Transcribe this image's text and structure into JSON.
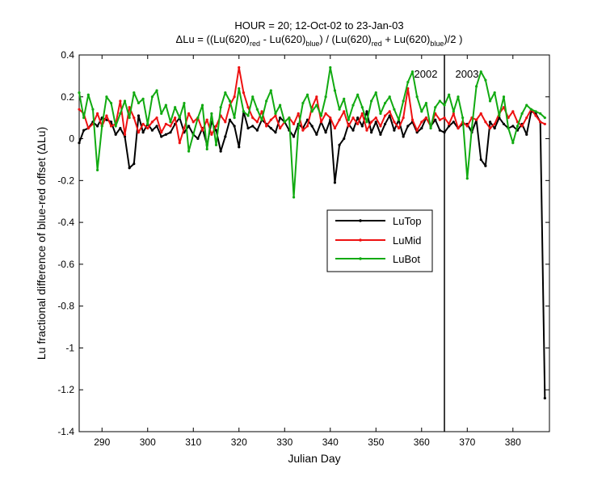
{
  "chart_data": {
    "type": "line",
    "title_line1": "HOUR = 20; 12-Oct-02 to 23-Jan-03",
    "title_line2": {
      "prefix": "ΔLu = ((Lu(620)",
      "sub1": "red",
      "mid1": " - Lu(620)",
      "sub2": "blue",
      "mid2": ") / (Lu(620)",
      "sub3": "red",
      "mid3": " + Lu(620)",
      "sub4": "blue",
      "suffix": ")/2  )"
    },
    "xlabel": "Julian Day",
    "ylabel": "Lu fractional difference of blue-red offset (ΔLu)",
    "xlim": [
      285,
      388
    ],
    "ylim": [
      -1.4,
      0.4
    ],
    "xticks": [
      "290",
      "300",
      "310",
      "320",
      "330",
      "340",
      "350",
      "360",
      "370",
      "380"
    ],
    "yticks": [
      "0.4",
      "0.2",
      "0",
      "-0.2",
      "-0.4",
      "-0.6",
      "-0.8",
      "-1",
      "-1.2",
      "-1.4"
    ],
    "grid": false,
    "legend_position": "center-right",
    "annotations": {
      "year_left": "2002",
      "year_right": "2003",
      "divider_x": 365
    },
    "series": [
      {
        "name": "LuTop",
        "color": "#000000",
        "x": [
          285,
          286,
          287,
          288,
          289,
          290,
          291,
          292,
          293,
          294,
          295,
          296,
          297,
          298,
          299,
          300,
          301,
          302,
          303,
          304,
          305,
          306,
          307,
          308,
          309,
          310,
          311,
          312,
          313,
          314,
          315,
          316,
          317,
          318,
          319,
          320,
          321,
          322,
          323,
          324,
          325,
          326,
          327,
          328,
          329,
          330,
          331,
          332,
          333,
          334,
          335,
          336,
          337,
          338,
          339,
          340,
          341,
          342,
          343,
          344,
          345,
          346,
          347,
          348,
          349,
          350,
          351,
          352,
          353,
          354,
          355,
          356,
          357,
          358,
          359,
          360,
          361,
          362,
          363,
          364,
          365,
          366,
          367,
          368,
          369,
          370,
          371,
          372,
          373,
          374,
          375,
          376,
          377,
          378,
          379,
          380,
          381,
          382,
          383,
          384,
          385,
          386,
          387
        ],
        "y": [
          -0.02,
          0.04,
          0.05,
          0.08,
          0.06,
          0.1,
          0.09,
          0.08,
          0.02,
          0.05,
          0.01,
          -0.14,
          -0.12,
          0.11,
          0.03,
          0.07,
          0.04,
          0.06,
          0.01,
          0.02,
          0.03,
          0.07,
          0.1,
          0.03,
          0.06,
          0.02,
          0.0,
          0.05,
          -0.03,
          0.08,
          0.04,
          -0.06,
          0.01,
          0.09,
          0.06,
          -0.04,
          0.13,
          0.05,
          0.06,
          0.04,
          0.09,
          0.07,
          0.05,
          0.03,
          0.1,
          0.08,
          0.04,
          0.01,
          0.07,
          0.05,
          0.09,
          0.06,
          0.02,
          0.08,
          0.03,
          0.09,
          -0.21,
          -0.03,
          0.0,
          0.07,
          0.04,
          0.1,
          0.06,
          0.13,
          0.03,
          0.08,
          0.02,
          0.07,
          0.11,
          0.04,
          0.09,
          0.01,
          0.06,
          0.08,
          0.03,
          0.05,
          0.1,
          0.06,
          0.09,
          0.04,
          0.03,
          0.06,
          0.08,
          0.05,
          0.07,
          0.07,
          0.03,
          0.09,
          -0.1,
          -0.13,
          0.08,
          0.05,
          0.1,
          0.07,
          0.05,
          0.06,
          0.04,
          0.07,
          0.02,
          0.13,
          0.12,
          0.08,
          -1.24
        ]
      },
      {
        "name": "LuMid",
        "color": "#ee1111",
        "x": [
          285,
          286,
          287,
          288,
          289,
          290,
          291,
          292,
          293,
          294,
          295,
          296,
          297,
          298,
          299,
          300,
          301,
          302,
          303,
          304,
          305,
          306,
          307,
          308,
          309,
          310,
          311,
          312,
          313,
          314,
          315,
          316,
          317,
          318,
          319,
          320,
          321,
          322,
          323,
          324,
          325,
          326,
          327,
          328,
          329,
          330,
          331,
          332,
          333,
          334,
          335,
          336,
          337,
          338,
          339,
          340,
          341,
          342,
          343,
          344,
          345,
          346,
          347,
          348,
          349,
          350,
          351,
          352,
          353,
          354,
          355,
          356,
          357,
          358,
          359,
          360,
          361,
          362,
          363,
          364,
          365,
          366,
          367,
          368,
          369,
          370,
          371,
          372,
          373,
          374,
          375,
          376,
          377,
          378,
          379,
          380,
          381,
          382,
          383,
          384,
          385,
          386,
          387
        ],
        "y": [
          0.14,
          0.12,
          0.05,
          0.07,
          0.12,
          0.06,
          0.11,
          0.06,
          0.07,
          0.18,
          0.02,
          0.15,
          0.1,
          0.03,
          0.07,
          0.05,
          0.08,
          0.1,
          0.03,
          0.07,
          0.06,
          0.1,
          -0.02,
          0.05,
          0.12,
          0.08,
          0.1,
          0.04,
          0.09,
          0.02,
          0.06,
          0.11,
          0.08,
          0.16,
          0.2,
          0.34,
          0.22,
          0.15,
          0.1,
          0.08,
          0.13,
          0.06,
          0.09,
          0.11,
          0.05,
          0.08,
          0.1,
          0.07,
          0.12,
          0.04,
          0.06,
          0.15,
          0.2,
          0.08,
          0.12,
          0.1,
          0.05,
          0.09,
          0.13,
          0.06,
          0.1,
          0.07,
          0.12,
          0.04,
          0.08,
          0.1,
          0.06,
          0.11,
          0.13,
          0.08,
          0.05,
          0.1,
          0.24,
          0.09,
          0.04,
          0.08,
          0.1,
          0.06,
          0.12,
          0.09,
          0.1,
          0.07,
          0.12,
          0.05,
          0.08,
          0.06,
          0.1,
          0.09,
          0.12,
          0.08,
          0.05,
          0.07,
          0.12,
          0.15,
          0.1,
          0.13,
          0.08,
          0.06,
          0.1,
          0.14,
          0.11,
          0.08,
          0.07
        ]
      },
      {
        "name": "LuBot",
        "color": "#11aa11",
        "x": [
          285,
          286,
          287,
          288,
          289,
          290,
          291,
          292,
          293,
          294,
          295,
          296,
          297,
          298,
          299,
          300,
          301,
          302,
          303,
          304,
          305,
          306,
          307,
          308,
          309,
          310,
          311,
          312,
          313,
          314,
          315,
          316,
          317,
          318,
          319,
          320,
          321,
          322,
          323,
          324,
          325,
          326,
          327,
          328,
          329,
          330,
          331,
          332,
          333,
          334,
          335,
          336,
          337,
          338,
          339,
          340,
          341,
          342,
          343,
          344,
          345,
          346,
          347,
          348,
          349,
          350,
          351,
          352,
          353,
          354,
          355,
          356,
          357,
          358,
          359,
          360,
          361,
          362,
          363,
          364,
          365,
          366,
          367,
          368,
          369,
          370,
          371,
          372,
          373,
          374,
          375,
          376,
          377,
          378,
          379,
          380,
          381,
          382,
          383,
          384,
          385,
          386,
          387
        ],
        "y": [
          0.22,
          0.1,
          0.21,
          0.14,
          -0.15,
          0.06,
          0.2,
          0.17,
          0.06,
          0.12,
          0.18,
          0.1,
          0.22,
          0.17,
          0.19,
          0.07,
          0.2,
          0.23,
          0.12,
          0.16,
          0.08,
          0.15,
          0.1,
          0.17,
          -0.06,
          0.02,
          0.1,
          0.16,
          -0.05,
          0.12,
          -0.03,
          0.15,
          0.22,
          0.18,
          0.1,
          0.24,
          0.13,
          0.11,
          0.2,
          0.14,
          0.09,
          0.18,
          0.23,
          0.12,
          0.16,
          0.08,
          0.1,
          -0.28,
          0.05,
          0.17,
          0.21,
          0.13,
          0.16,
          0.11,
          0.2,
          0.34,
          0.23,
          0.14,
          0.19,
          0.09,
          0.16,
          0.21,
          0.15,
          0.08,
          0.18,
          0.22,
          0.12,
          0.17,
          0.2,
          0.14,
          0.09,
          0.18,
          0.27,
          0.32,
          0.2,
          0.13,
          0.17,
          0.05,
          0.15,
          0.18,
          0.16,
          0.21,
          0.13,
          0.2,
          0.1,
          -0.19,
          0.05,
          0.25,
          0.32,
          0.28,
          0.18,
          0.22,
          0.11,
          0.2,
          0.05,
          -0.02,
          0.06,
          0.12,
          0.16,
          0.14,
          0.13,
          0.12,
          0.1
        ]
      }
    ]
  }
}
